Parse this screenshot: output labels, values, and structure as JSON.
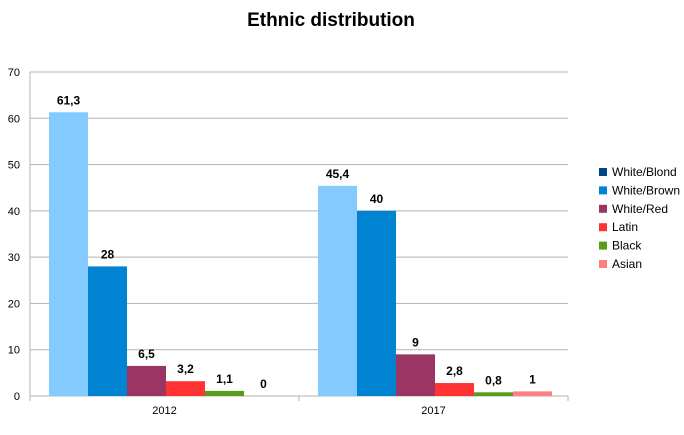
{
  "chart_data": {
    "type": "bar",
    "title": "Ethnic distribution",
    "xlabel": "",
    "ylabel": "",
    "ylim": [
      0,
      70
    ],
    "yticks": [
      0,
      10,
      20,
      30,
      40,
      50,
      60,
      70
    ],
    "grid": true,
    "legend_position": "right",
    "categories": [
      "2012",
      "2017"
    ],
    "series": [
      {
        "name": "White/Blond",
        "color": "#004586",
        "values": [
          61.3,
          45.4
        ],
        "labels": [
          "61,3",
          "45,4"
        ]
      },
      {
        "name": "White/Brown",
        "color": "#0084d1",
        "values": [
          28,
          40
        ],
        "labels": [
          "28",
          "40"
        ]
      },
      {
        "name": "White/Red",
        "color": "#9b3664",
        "values": [
          6.5,
          9
        ],
        "labels": [
          "6,5",
          "9"
        ]
      },
      {
        "name": "Latin",
        "color": "#ff3333",
        "values": [
          3.2,
          2.8
        ],
        "labels": [
          "3,2",
          "2,8"
        ]
      },
      {
        "name": "Black",
        "color": "#579d1c",
        "values": [
          1.1,
          0.8
        ],
        "labels": [
          "1,1",
          "0,8"
        ]
      },
      {
        "name": "Asian",
        "color": "#ff8080",
        "values": [
          0,
          1
        ],
        "labels": [
          "0",
          "1"
        ]
      }
    ],
    "first_series_bar_color": "#83caff"
  }
}
